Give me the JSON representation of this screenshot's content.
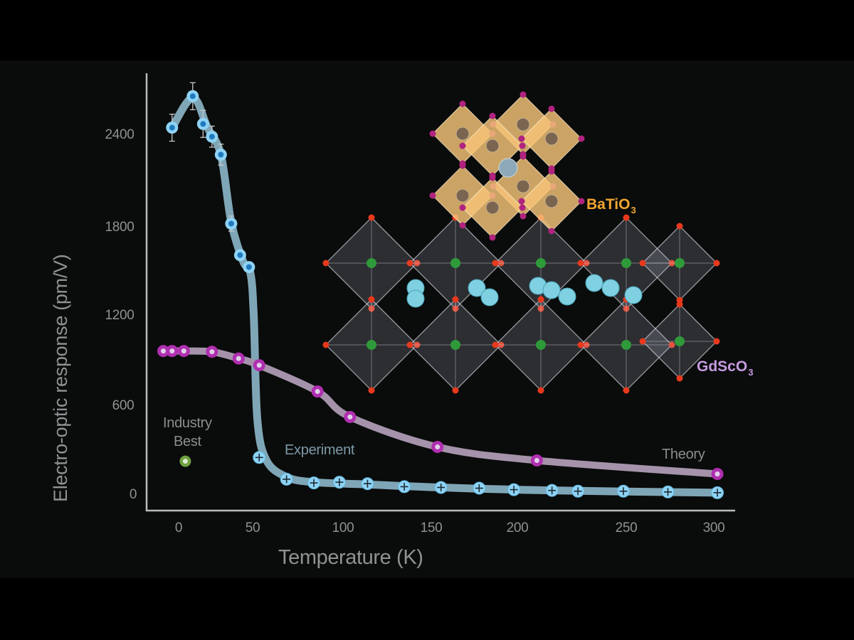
{
  "chart_data": {
    "type": "line",
    "title": "",
    "xlabel": "Temperature (K)",
    "ylabel": "Electro-optic response (pm/V)",
    "x_ticks": [
      0,
      50,
      100,
      150,
      200,
      250,
      300
    ],
    "y_ticks": [
      0,
      600,
      1200,
      1800,
      2400
    ],
    "xlim": [
      -10,
      310
    ],
    "ylim": [
      0,
      2750
    ],
    "grid": false,
    "legend": "inline annotations",
    "series": [
      {
        "name": "Experiment",
        "style": "thick light-blue curve with cyan circle markers (error bars at low T, plus-sign markers at high T)",
        "color": "#7fa6b6",
        "marker_color": "#8fd3f5",
        "points": [
          {
            "x": -2,
            "y": 2450,
            "err": 90
          },
          {
            "x": 10,
            "y": 2660,
            "err": 90
          },
          {
            "x": 17,
            "y": 2475,
            "err": 90
          },
          {
            "x": 23,
            "y": 2390,
            "err": 70
          },
          {
            "x": 29,
            "y": 2270,
            "err": 70
          },
          {
            "x": 36,
            "y": 1810,
            "err": 50
          },
          {
            "x": 42,
            "y": 1600,
            "err": 0
          },
          {
            "x": 48,
            "y": 1520,
            "err": 0
          },
          {
            "x": 54,
            "y": 250
          },
          {
            "x": 69,
            "y": 105
          },
          {
            "x": 84,
            "y": 80
          },
          {
            "x": 98,
            "y": 85
          },
          {
            "x": 114,
            "y": 75
          },
          {
            "x": 135,
            "y": 55
          },
          {
            "x": 156,
            "y": 50
          },
          {
            "x": 178,
            "y": 45
          },
          {
            "x": 198,
            "y": 35
          },
          {
            "x": 216,
            "y": 30
          },
          {
            "x": 228,
            "y": 25
          },
          {
            "x": 249,
            "y": 25
          },
          {
            "x": 274,
            "y": 20
          },
          {
            "x": 302,
            "y": 15
          }
        ]
      },
      {
        "name": "Theory",
        "style": "thick lavender curve with magenta ring markers",
        "color": "#a593ab",
        "marker_color": "#b02fb0",
        "points": [
          {
            "x": -5,
            "y": 960
          },
          {
            "x": -2,
            "y": 960
          },
          {
            "x": 4,
            "y": 960
          },
          {
            "x": 23,
            "y": 955
          },
          {
            "x": 41,
            "y": 910
          },
          {
            "x": 54,
            "y": 865
          },
          {
            "x": 86,
            "y": 690
          },
          {
            "x": 104,
            "y": 520
          },
          {
            "x": 154,
            "y": 320
          },
          {
            "x": 209,
            "y": 230
          },
          {
            "x": 302,
            "y": 140
          }
        ]
      },
      {
        "name": "Industry Best",
        "style": "single green ring marker",
        "color": "#6fa040",
        "points": [
          {
            "x": 5,
            "y": 225
          }
        ]
      }
    ],
    "annotations": [
      {
        "text": "Industry Best",
        "near": {
          "x": 5,
          "y": 400
        }
      },
      {
        "text": "Experiment",
        "near": {
          "x": 110,
          "y": 280
        }
      },
      {
        "text": "Theory",
        "near": {
          "x": 280,
          "y": 260
        }
      },
      {
        "text": "BaTiO3",
        "kind": "inset label",
        "color": "#f0a630"
      },
      {
        "text": "GdScO3",
        "kind": "inset label",
        "color": "#c69be0"
      }
    ],
    "inset": "3D crystal-structure illustration: BaTiO3 octahedra (orange) stacked on GdScO3 octahedra (translucent grey, red O, green Sc, cyan Gd)"
  },
  "axes": {
    "x_title": "Temperature (K)",
    "y_title": "Electro-optic response (pm/V)",
    "x_tick_labels": [
      "0",
      "50",
      "100",
      "150",
      "200",
      "250",
      "300"
    ],
    "y_tick_labels": [
      "0",
      "600",
      "1200",
      "1800",
      "2400"
    ]
  },
  "labels": {
    "industry_line1": "Industry",
    "industry_line2": "Best",
    "experiment": "Experiment",
    "theory": "Theory",
    "batio3_main": "BaTiO",
    "batio3_sub": "3",
    "gdsco3_main": "GdScO",
    "gdsco3_sub": "3"
  },
  "colors": {
    "background": "#000000",
    "panel": "#0a0b0b",
    "axis": "#b9bcbd",
    "text": "#8f9293",
    "experiment_line": "#7fa6b6",
    "experiment_marker": "#8fd3f5",
    "experiment_marker_center": "#1f7ac0",
    "theory_line": "#a593ab",
    "theory_marker": "#b02fb0",
    "theory_marker_center": "#e0d0ea",
    "industry_marker": "#6fa040",
    "batio3": "#f0a630",
    "gdsco3": "#c69be0"
  }
}
